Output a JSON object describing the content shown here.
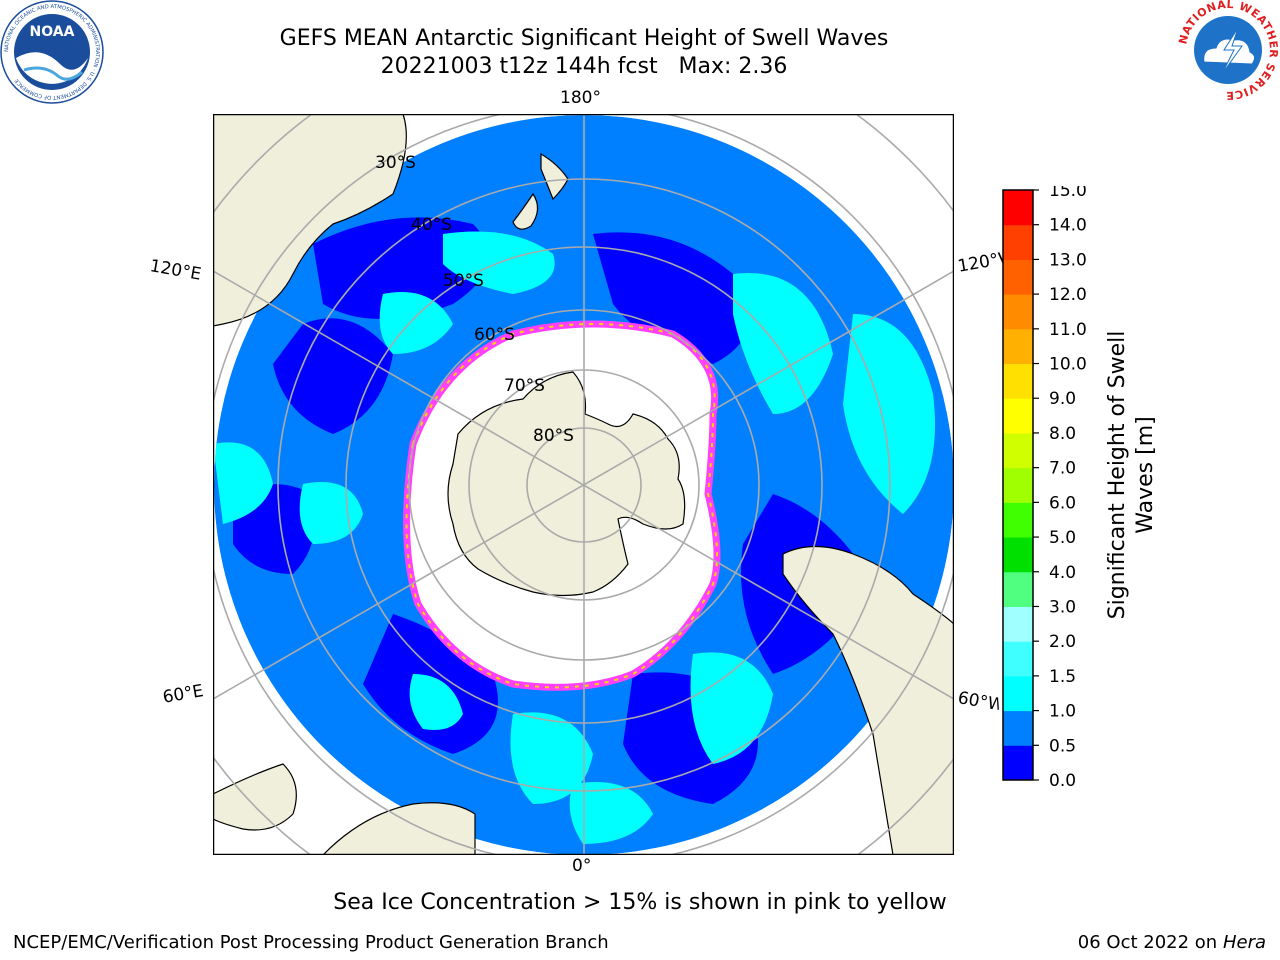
{
  "title": {
    "line1": "GEFS MEAN Antarctic Significant Height of Swell Waves",
    "line2": "20221003 t12z 144h fcst   Max: 2.36"
  },
  "map": {
    "projection": "south-polar-stereographic",
    "longitude_labels": {
      "top": "180°",
      "bottom": "0°",
      "upper_left": "120°E",
      "lower_left": "60°E",
      "upper_right": "120°W",
      "lower_right": "60°W"
    },
    "latitude_labels": [
      "30°S",
      "40°S",
      "50°S",
      "60°S",
      "70°S",
      "80°S"
    ],
    "colors": {
      "land": "#efefdc",
      "ocean_0_05": "#0000ff",
      "ocean_05_1": "#0080ff",
      "ocean_1_15": "#00ffff",
      "ocean_15_2": "#40ffff",
      "ice": "#ffffff",
      "ice_edge_pink": "#ff40ff",
      "ice_edge_yellow": "#ffd700",
      "grid": "#aaaaaa"
    }
  },
  "colorbar": {
    "title": "Significant Height of Swell Waves [m]",
    "ticks": [
      "0.0",
      "0.5",
      "1.0",
      "1.5",
      "2.0",
      "3.0",
      "4.0",
      "5.0",
      "6.0",
      "7.0",
      "8.0",
      "9.0",
      "10.0",
      "11.0",
      "12.0",
      "13.0",
      "14.0",
      "15.0"
    ],
    "colors": [
      "#0000ff",
      "#0080ff",
      "#00ffff",
      "#40ffff",
      "#a0ffff",
      "#50ff80",
      "#00e000",
      "#40ff00",
      "#a0ff00",
      "#d0ff00",
      "#ffff00",
      "#ffe000",
      "#ffb000",
      "#ff8c00",
      "#ff6000",
      "#ff4000",
      "#ff0000"
    ]
  },
  "caption": "Sea Ice Concentration > 15% is shown in pink to yellow",
  "footer": {
    "left": "NCEP/EMC/Verification Post Processing Product Generation Branch",
    "right_date": "06 Oct 2022 on ",
    "right_host": "Hera"
  },
  "logos": {
    "noaa_text": "NOAA",
    "noaa_ring_text": "NATIONAL OCEANIC AND ATMOSPHERIC ADMINISTRATION · U.S. DEPARTMENT OF COMMERCE",
    "nws_ring_text": "NATIONAL WEATHER SERVICE"
  }
}
